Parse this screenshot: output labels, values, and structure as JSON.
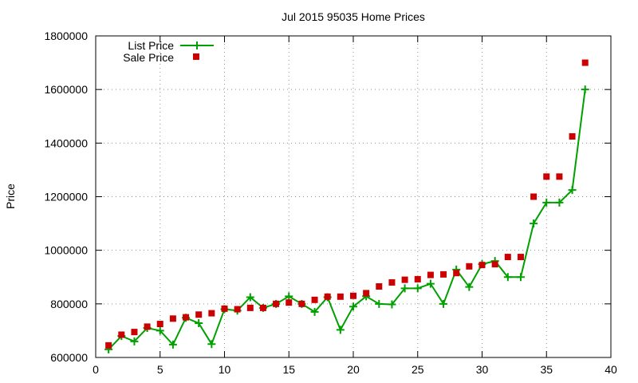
{
  "chart_data": {
    "type": "line",
    "title": "Jul 2015 95035 Home Prices",
    "xlabel": "",
    "ylabel": "Price",
    "xlim": [
      0,
      40
    ],
    "ylim": [
      600000,
      1800000
    ],
    "grid": true,
    "legend_position": "top-left",
    "x_ticks": [
      "0",
      "5",
      "10",
      "15",
      "20",
      "25",
      "30",
      "35",
      "40"
    ],
    "y_ticks": [
      "600000",
      "800000",
      "1000000",
      "1200000",
      "1400000",
      "1600000",
      "1800000"
    ],
    "x": [
      1,
      2,
      3,
      4,
      5,
      6,
      7,
      8,
      9,
      10,
      11,
      12,
      13,
      14,
      15,
      16,
      17,
      18,
      19,
      20,
      21,
      22,
      23,
      24,
      25,
      26,
      27,
      28,
      29,
      30,
      31,
      32,
      33,
      34,
      35,
      36,
      37,
      38
    ],
    "series": [
      {
        "name": "List Price",
        "style": "line-with-plus-markers",
        "color": "#00a000",
        "values": [
          630000,
          680000,
          660000,
          710000,
          700000,
          648000,
          748000,
          728000,
          650000,
          780000,
          775000,
          825000,
          785000,
          800000,
          828000,
          800000,
          770000,
          825000,
          703000,
          790000,
          828000,
          800000,
          798000,
          858000,
          858000,
          875000,
          800000,
          928000,
          863000,
          948000,
          960000,
          900000,
          900000,
          1100000,
          1178000,
          1178000,
          1225000,
          1600000
        ]
      },
      {
        "name": "Sale Price",
        "style": "square-markers",
        "color": "#cc0000",
        "values": [
          645000,
          685000,
          695000,
          715000,
          725000,
          745000,
          750000,
          760000,
          765000,
          782000,
          780000,
          785000,
          785000,
          800000,
          805000,
          800000,
          815000,
          827000,
          827000,
          830000,
          840000,
          865000,
          880000,
          890000,
          892000,
          908000,
          910000,
          915000,
          940000,
          945000,
          948000,
          975000,
          975000,
          1200000,
          1275000,
          1275000,
          1425000,
          1700000
        ]
      }
    ]
  }
}
